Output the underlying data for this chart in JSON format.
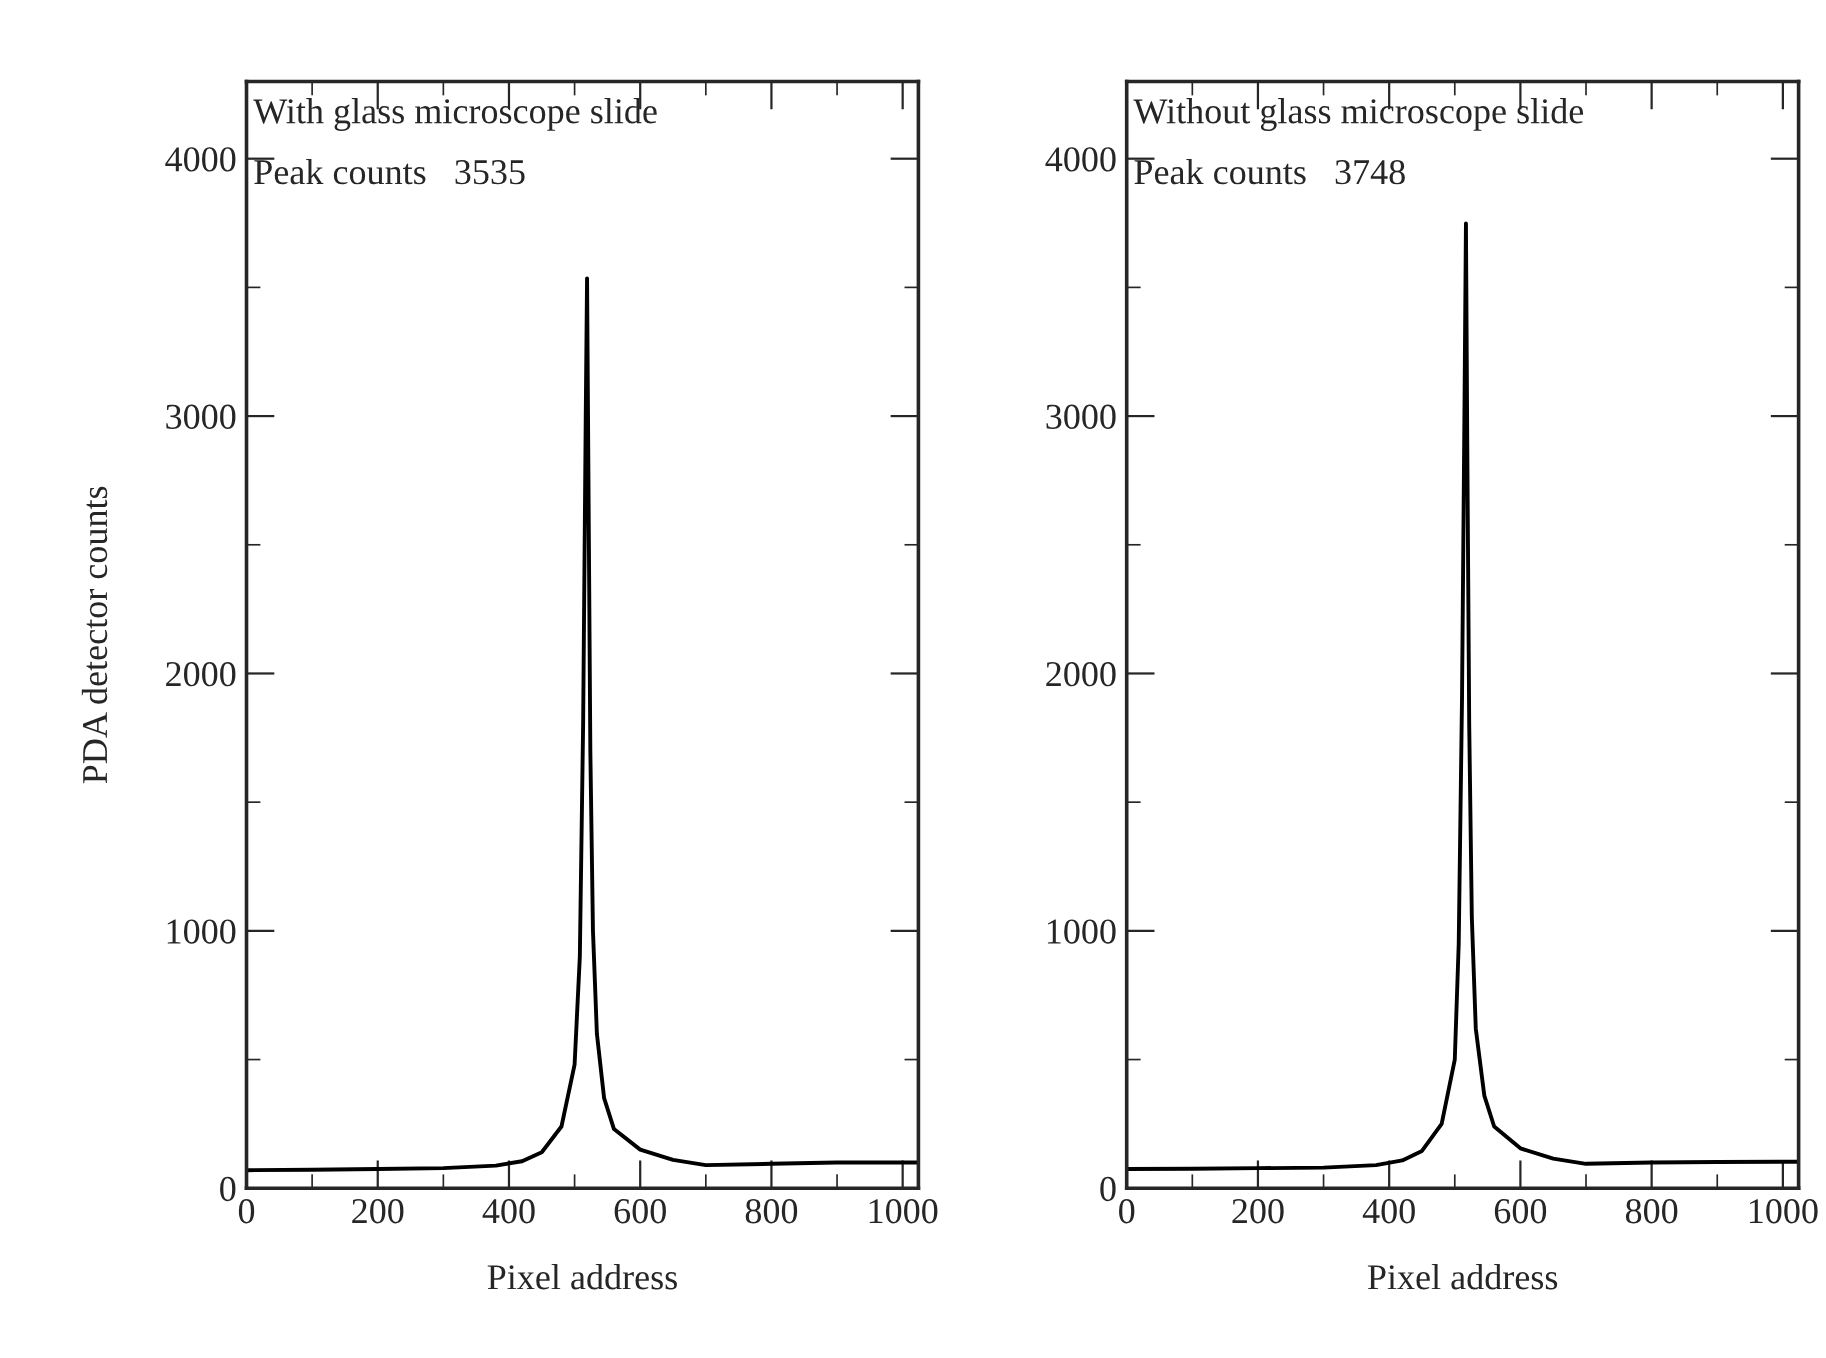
{
  "chart_data": [
    {
      "type": "line",
      "xlabel": "Pixel address",
      "ylabel": "PDA detector counts",
      "annotations": [
        "With glass microscope slide",
        "Peak counts   3535"
      ],
      "x": [
        0,
        100,
        200,
        300,
        380,
        420,
        450,
        480,
        500,
        508,
        513,
        517,
        519,
        521,
        524,
        528,
        534,
        545,
        560,
        600,
        650,
        700,
        800,
        900,
        1000,
        1023
      ],
      "series": [
        {
          "color": "#000000",
          "values": [
            70,
            72,
            75,
            78,
            88,
            105,
            140,
            240,
            480,
            900,
            1800,
            3000,
            3535,
            2800,
            1700,
            1000,
            600,
            350,
            230,
            150,
            110,
            90,
            95,
            100,
            100,
            100
          ]
        }
      ],
      "xlim": [
        0,
        1024
      ],
      "xticks": [
        0,
        200,
        400,
        600,
        800,
        1000
      ],
      "ylim": [
        0,
        4300
      ],
      "yticks": [
        0,
        1000,
        2000,
        3000,
        4000
      ],
      "grid": false,
      "legend": false,
      "marker": "none",
      "line_style": "solid"
    },
    {
      "type": "line",
      "xlabel": "Pixel address",
      "annotations": [
        "Without glass microscope slide",
        "Peak counts   3748"
      ],
      "x": [
        0,
        100,
        200,
        300,
        380,
        420,
        450,
        480,
        500,
        506,
        511,
        515,
        517,
        519,
        522,
        526,
        532,
        545,
        560,
        600,
        650,
        700,
        800,
        900,
        1000,
        1023
      ],
      "series": [
        {
          "color": "#000000",
          "values": [
            75,
            76,
            78,
            80,
            90,
            108,
            145,
            250,
            500,
            950,
            1900,
            3100,
            3748,
            2900,
            1800,
            1050,
            620,
            360,
            240,
            155,
            115,
            95,
            100,
            102,
            103,
            103
          ]
        }
      ],
      "xlim": [
        0,
        1024
      ],
      "xticks": [
        0,
        200,
        400,
        600,
        800,
        1000
      ],
      "ylim": [
        0,
        4300
      ],
      "yticks": [
        0,
        1000,
        2000,
        3000,
        4000
      ],
      "grid": false,
      "legend": false,
      "marker": "none",
      "line_style": "solid"
    }
  ]
}
